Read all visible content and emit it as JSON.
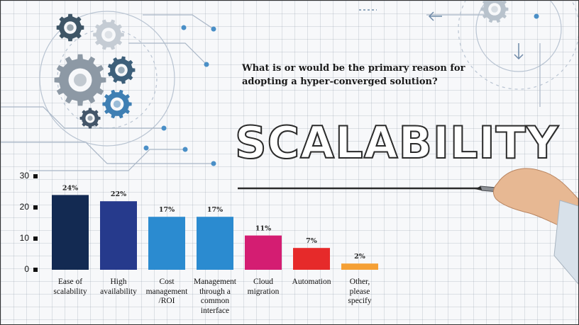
{
  "question": "What is or would be the primary reason for\nadopting a hyper-converged solution?",
  "hero_word": "SCALABILITY",
  "chart_data": {
    "type": "bar",
    "title": "What is or would be the primary reason for adopting a hyper-converged solution?",
    "categories": [
      "Ease of\nscalability",
      "High\navailability",
      "Cost\nmanagement\n/ROI",
      "Management\nthrough a\ncommon\ninterface",
      "Cloud\nmigration",
      "Automation",
      "Other,\nplease\nspecify"
    ],
    "values": [
      24,
      22,
      17,
      17,
      11,
      7,
      2
    ],
    "value_labels": [
      "24%",
      "22%",
      "17%",
      "17%",
      "11%",
      "7%",
      "2%"
    ],
    "colors": [
      "#132a52",
      "#263a8c",
      "#2b8bd0",
      "#2b8bd0",
      "#d41d72",
      "#e62a2a",
      "#f5a035"
    ],
    "yticks": [
      "0",
      "10",
      "20",
      "30"
    ],
    "ylim": [
      0,
      30
    ],
    "xlabel": "",
    "ylabel": "",
    "grid": false,
    "legend": "none"
  }
}
